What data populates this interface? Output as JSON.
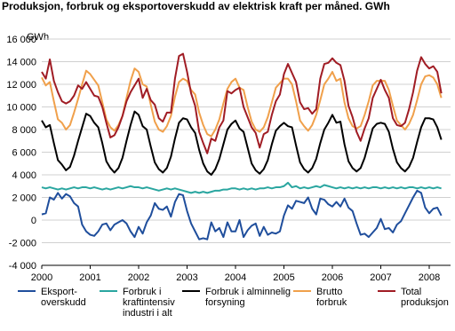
{
  "chart_data": {
    "type": "line",
    "title": "Produksjon, forbruk og eksportoverskudd av elektrisk kraft per måned. GWh",
    "y_label": "GWh",
    "categories": [
      "2000",
      null,
      null,
      null,
      null,
      null,
      null,
      null,
      null,
      null,
      null,
      null,
      "2001",
      null,
      null,
      null,
      null,
      null,
      null,
      null,
      null,
      null,
      null,
      null,
      "2002",
      null,
      null,
      null,
      null,
      null,
      null,
      null,
      null,
      null,
      null,
      null,
      "2003",
      null,
      null,
      null,
      null,
      null,
      null,
      null,
      null,
      null,
      null,
      null,
      "2004",
      null,
      null,
      null,
      null,
      null,
      null,
      null,
      null,
      null,
      null,
      null,
      "2005",
      null,
      null,
      null,
      null,
      null,
      null,
      null,
      null,
      null,
      null,
      null,
      "2006",
      null,
      null,
      null,
      null,
      null,
      null,
      null,
      null,
      null,
      null,
      null,
      "2007",
      null,
      null,
      null,
      null,
      null,
      null,
      null,
      null,
      null,
      null,
      null,
      "2008",
      null,
      null,
      null
    ],
    "ylim": [
      -4000,
      16000
    ],
    "yticks": [
      {
        "value": -4000,
        "label": "-4 000"
      },
      {
        "value": -2000,
        "label": "-2 000"
      },
      0,
      {
        "value": 2000,
        "label": "2 000"
      },
      {
        "value": 4000,
        "label": "4 000"
      },
      {
        "value": 6000,
        "label": "6 000"
      },
      {
        "value": 8000,
        "label": "8 000"
      },
      {
        "value": 10000,
        "label": "10 000"
      },
      {
        "value": 12000,
        "label": "12 000"
      },
      {
        "value": 14000,
        "label": "14 000"
      },
      {
        "value": 16000,
        "label": "16 000"
      }
    ],
    "grid": true,
    "series": [
      {
        "name": "Eksport-\noverskudd",
        "color": "#1f4e9c",
        "values": [
          500,
          600,
          2000,
          1800,
          2400,
          1900,
          2300,
          2100,
          1500,
          1200,
          -400,
          -1000,
          -1300,
          -1400,
          -1000,
          -400,
          -300,
          -900,
          -400,
          -200,
          0,
          -300,
          -1000,
          -1500,
          -600,
          -1200,
          -200,
          400,
          1500,
          1000,
          900,
          1200,
          300,
          1600,
          2300,
          2200,
          800,
          -300,
          -1000,
          -1700,
          -1600,
          -1700,
          -200,
          -1000,
          -700,
          -1500,
          -200,
          -1000,
          -1000,
          0,
          -1500,
          -900,
          -500,
          -300,
          -1400,
          -600,
          -1300,
          -1100,
          -1200,
          -1000,
          400,
          1300,
          1000,
          1700,
          1600,
          1500,
          2000,
          1000,
          500,
          1900,
          1800,
          1400,
          1200,
          1600,
          1200,
          1900,
          1100,
          800,
          -300,
          -1300,
          -1200,
          -1500,
          -1100,
          -700,
          100,
          -800,
          -700,
          -1100,
          -400,
          -100,
          600,
          1300,
          2000,
          2600,
          2400,
          1100,
          600,
          1000,
          1100,
          400
        ]
      },
      {
        "name": "Forbruk i\nkraftintensiv\nindustri i alt",
        "color": "#2aa6a0",
        "values": [
          2900,
          2800,
          2900,
          2800,
          2700,
          2800,
          2700,
          2800,
          2900,
          2800,
          2900,
          2900,
          2800,
          2900,
          2800,
          2700,
          2800,
          2700,
          2800,
          2900,
          2800,
          2900,
          3000,
          2900,
          2900,
          2800,
          2900,
          2800,
          2700,
          2600,
          2700,
          2800,
          2700,
          2800,
          2700,
          2600,
          2500,
          2400,
          2500,
          2400,
          2500,
          2400,
          2500,
          2600,
          2600,
          2700,
          2700,
          2800,
          2800,
          2700,
          2800,
          2700,
          2800,
          2700,
          2800,
          2800,
          2900,
          2800,
          2900,
          2900,
          3000,
          3300,
          2900,
          3000,
          2800,
          2900,
          2800,
          2900,
          3000,
          2900,
          3100,
          3000,
          2900,
          2800,
          2900,
          2800,
          2900,
          2800,
          2900,
          2800,
          2900,
          2800,
          2900,
          2900,
          2800,
          2900,
          2800,
          2900,
          2800,
          2900,
          2800,
          2900,
          2900,
          2800,
          2900,
          2800,
          2900,
          2800,
          2900,
          2800
        ]
      },
      {
        "name": "Forbruk i alminnelig\nforsyning",
        "color": "#000000",
        "values": [
          8800,
          8200,
          8400,
          6800,
          5300,
          4900,
          4400,
          4700,
          5700,
          7000,
          8200,
          9400,
          9200,
          8600,
          8200,
          6800,
          5200,
          4600,
          4200,
          4600,
          5500,
          7000,
          8400,
          9600,
          9300,
          8300,
          8000,
          6500,
          5100,
          4500,
          4200,
          4600,
          5600,
          7200,
          8600,
          9000,
          8900,
          8200,
          7700,
          6200,
          5000,
          4300,
          4000,
          4500,
          5400,
          6700,
          8000,
          8500,
          8800,
          8100,
          7800,
          6400,
          5000,
          4400,
          4100,
          4500,
          5300,
          6700,
          7900,
          8300,
          8600,
          8300,
          8200,
          6600,
          5100,
          4500,
          4200,
          4600,
          5400,
          6800,
          8000,
          8600,
          9300,
          8600,
          8700,
          6700,
          5200,
          4600,
          4300,
          4600,
          5500,
          6800,
          8100,
          8500,
          8600,
          8500,
          7800,
          6300,
          5100,
          4600,
          4300,
          4700,
          5500,
          6900,
          8200,
          9000,
          9000,
          8900,
          8200,
          7100
        ]
      },
      {
        "name": "Brutto\nforbruk",
        "color": "#f0a04b",
        "values": [
          12600,
          11900,
          12200,
          10500,
          8900,
          8600,
          8000,
          8400,
          9500,
          10700,
          12000,
          13200,
          12900,
          12400,
          11900,
          10400,
          8900,
          8200,
          7900,
          8400,
          9200,
          10800,
          12300,
          13400,
          13100,
          12000,
          11800,
          10200,
          8700,
          8000,
          7800,
          8300,
          9200,
          10900,
          12200,
          12500,
          12300,
          11500,
          11100,
          9500,
          8400,
          7600,
          7400,
          8000,
          8900,
          10300,
          11600,
          12200,
          12500,
          11700,
          11500,
          10000,
          8700,
          8000,
          7800,
          8200,
          9100,
          10400,
          11700,
          12100,
          12500,
          12500,
          12000,
          10500,
          8800,
          8300,
          7900,
          8400,
          9300,
          10600,
          12000,
          12500,
          13100,
          12300,
          12500,
          10400,
          9000,
          8300,
          8100,
          8300,
          9300,
          10500,
          11900,
          12300,
          12300,
          12300,
          11500,
          10100,
          8800,
          8400,
          8000,
          8500,
          9300,
          10600,
          12000,
          12700,
          12800,
          12600,
          12000,
          10800
        ]
      },
      {
        "name": "Total\nproduksjon",
        "color": "#a01c24",
        "values": [
          13100,
          12500,
          14200,
          12300,
          11300,
          10500,
          10300,
          10500,
          11000,
          11900,
          11600,
          12200,
          11600,
          11000,
          10900,
          10000,
          8600,
          7300,
          7500,
          8200,
          9200,
          10500,
          11300,
          11900,
          12500,
          10800,
          11600,
          10600,
          10200,
          9000,
          8700,
          9500,
          9500,
          12500,
          14500,
          14700,
          13100,
          11200,
          10100,
          7800,
          6800,
          5900,
          7200,
          7000,
          8200,
          8800,
          11400,
          11200,
          11500,
          11700,
          10000,
          9100,
          8200,
          7700,
          6400,
          7600,
          7800,
          9300,
          10500,
          11100,
          12900,
          13800,
          13000,
          12200,
          10400,
          9800,
          9900,
          9400,
          9800,
          12500,
          13800,
          13900,
          14300,
          13900,
          13700,
          12300,
          10100,
          9100,
          7800,
          7000,
          8100,
          9000,
          10800,
          11600,
          12400,
          11500,
          10800,
          9000,
          8400,
          8300,
          8600,
          9800,
          11300,
          13200,
          14400,
          13800,
          13400,
          13600,
          13100,
          11200
        ]
      }
    ]
  }
}
